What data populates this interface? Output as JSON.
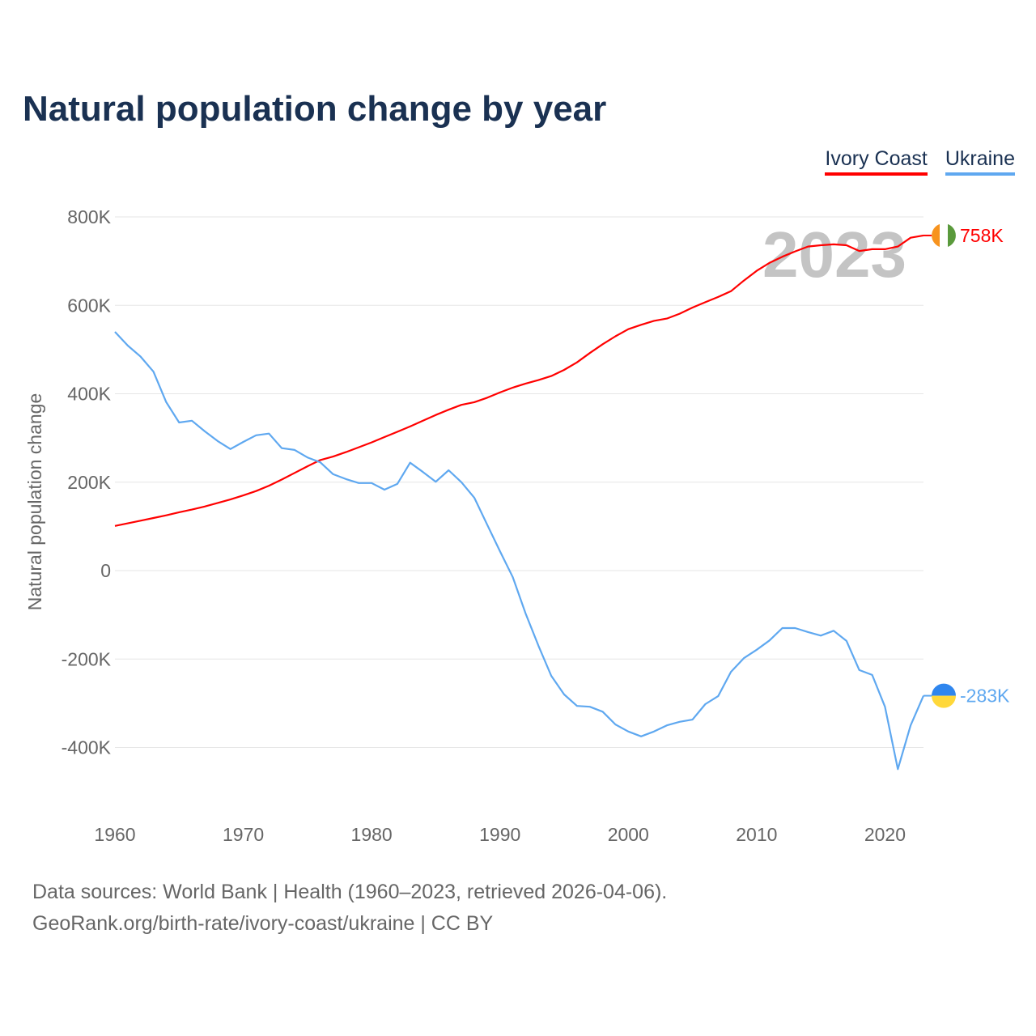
{
  "chart_data": {
    "type": "line",
    "title": "Natural population change by year",
    "ylabel": "Natural population change",
    "xlabel": "",
    "xlim": [
      1960,
      2023
    ],
    "ylim": [
      -500000,
      800000
    ],
    "y_ticks": [
      800000,
      600000,
      400000,
      200000,
      0,
      -200000,
      -400000
    ],
    "y_tick_labels": [
      "800K",
      "600K",
      "400K",
      "200K",
      "0",
      "-200K",
      "-400K"
    ],
    "x_ticks": [
      1960,
      1970,
      1980,
      1990,
      2000,
      2010,
      2020
    ],
    "x_tick_labels": [
      "1960",
      "1970",
      "1980",
      "1990",
      "2000",
      "2010",
      "2020"
    ],
    "grid": true,
    "legend_position": "top-right",
    "year_watermark": "2023",
    "x": [
      1960,
      1961,
      1962,
      1963,
      1964,
      1965,
      1966,
      1967,
      1968,
      1969,
      1970,
      1971,
      1972,
      1973,
      1974,
      1975,
      1976,
      1977,
      1978,
      1979,
      1980,
      1981,
      1982,
      1983,
      1984,
      1985,
      1986,
      1987,
      1988,
      1989,
      1990,
      1991,
      1992,
      1993,
      1994,
      1995,
      1996,
      1997,
      1998,
      1999,
      2000,
      2001,
      2002,
      2003,
      2004,
      2005,
      2006,
      2007,
      2008,
      2009,
      2010,
      2011,
      2012,
      2013,
      2014,
      2015,
      2016,
      2017,
      2018,
      2019,
      2020,
      2021,
      2022,
      2023
    ],
    "series": [
      {
        "name": "Ivory Coast",
        "color": "#ff0000",
        "end_label": "758K",
        "flag": "ivory-coast",
        "values": [
          101,
          107,
          113,
          119,
          125,
          132,
          138,
          145,
          153,
          161,
          170,
          180,
          192,
          206,
          221,
          236,
          250,
          258,
          268,
          279,
          290,
          302,
          314,
          326,
          339,
          352,
          364,
          375,
          381,
          391,
          403,
          414,
          423,
          431,
          440,
          454,
          471,
          492,
          512,
          530,
          546,
          556,
          565,
          570,
          581,
          595,
          607,
          619,
          632,
          656,
          678,
          696,
          710,
          722,
          733,
          736,
          738,
          736,
          723,
          727,
          727,
          733,
          753,
          758
        ]
      },
      {
        "name": "Ukraine",
        "color": "#5fa8f0",
        "end_label": "-283K",
        "flag": "ukraine",
        "values": [
          540,
          509,
          484,
          450,
          381,
          335,
          339,
          315,
          293,
          275,
          291,
          306,
          310,
          277,
          273,
          256,
          245,
          218,
          207,
          198,
          198,
          183,
          196,
          244,
          223,
          201,
          227,
          200,
          165,
          104,
          44,
          -15,
          -97,
          -170,
          -238,
          -280,
          -306,
          -308,
          -319,
          -348,
          -364,
          -375,
          -364,
          -350,
          -342,
          -337,
          -302,
          -284,
          -229,
          -198,
          -179,
          -158,
          -130,
          -130,
          -139,
          -147,
          -136,
          -159,
          -225,
          -236,
          -308,
          -449,
          -350,
          -283
        ]
      }
    ]
  },
  "legend": {
    "items": [
      "Ivory Coast",
      "Ukraine"
    ]
  },
  "footer": {
    "line1": "Data sources: World Bank | Health (1960–2023, retrieved 2026-04-06).",
    "line2": "GeoRank.org/birth-rate/ivory-coast/ukraine | CC BY"
  }
}
